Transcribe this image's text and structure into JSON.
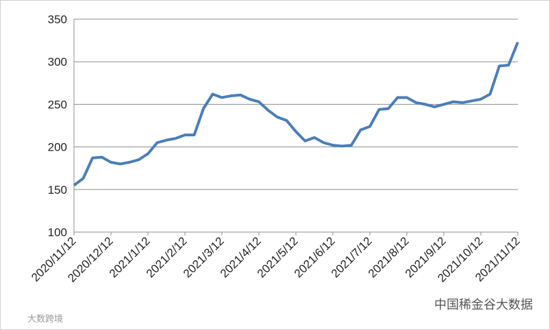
{
  "chart_data": {
    "type": "line",
    "categories": [
      "2020/11/12",
      null,
      null,
      null,
      "2020/12/12",
      null,
      null,
      null,
      "2021/1/12",
      null,
      null,
      null,
      "2021/2/12",
      null,
      null,
      null,
      "2021/3/12",
      null,
      null,
      null,
      "2021/4/12",
      null,
      null,
      null,
      "2021/5/12",
      null,
      null,
      null,
      "2021/6/12",
      null,
      null,
      null,
      "2021/7/12",
      null,
      null,
      null,
      "2021/8/12",
      null,
      null,
      null,
      "2021/9/12",
      null,
      null,
      null,
      "2021/10/12",
      null,
      null,
      null,
      "2021/11/12"
    ],
    "series": [
      {
        "color": "#4a7ebb",
        "values": [
          155,
          163,
          187,
          188,
          182,
          180,
          182,
          185,
          192,
          205,
          208,
          210,
          214,
          214,
          245,
          262,
          258,
          260,
          261,
          256,
          253,
          243,
          235,
          231,
          218,
          207,
          211,
          205,
          202,
          201,
          202,
          220,
          224,
          244,
          245,
          258,
          258,
          252,
          250,
          247,
          250,
          253,
          252,
          254,
          256,
          262,
          295,
          296,
          323
        ]
      }
    ],
    "ylim": [
      100,
      350
    ],
    "yticks": [
      100,
      150,
      200,
      250,
      300,
      350
    ],
    "grid": true,
    "annotations": [
      "中国稀金谷大数据",
      "大数跨境"
    ]
  }
}
